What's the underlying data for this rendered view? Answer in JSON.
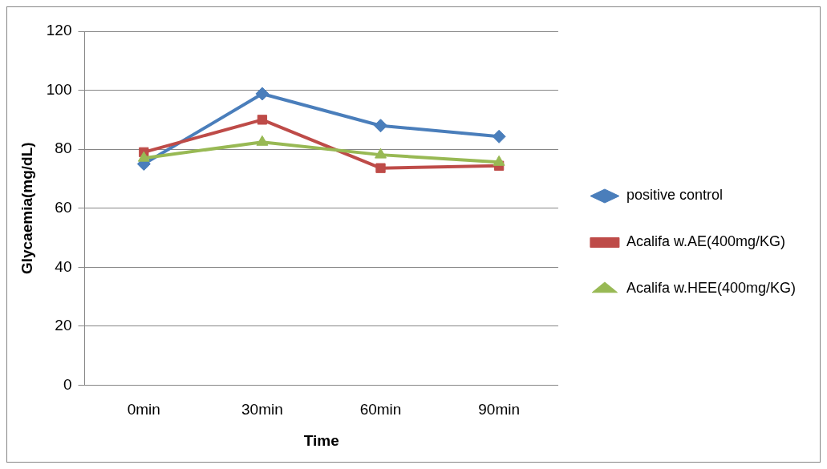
{
  "chart_data": {
    "type": "line",
    "xlabel": "Time",
    "ylabel": "Glycaemia(mg/dL)",
    "categories": [
      "0min",
      "30min",
      "60min",
      "90min"
    ],
    "series": [
      {
        "name": "positive control",
        "color": "#4a7ebb",
        "marker": "diamond",
        "values": [
          75,
          98.8,
          88,
          84.3
        ]
      },
      {
        "name": "Acalifa w.AE(400mg/KG)",
        "color": "#be4b48",
        "marker": "square",
        "values": [
          79,
          90,
          73.6,
          74.4
        ]
      },
      {
        "name": "Acalifa w.HEE(400mg/KG)",
        "color": "#98b954",
        "marker": "triangle",
        "values": [
          77,
          82.4,
          78.1,
          75.6
        ]
      }
    ],
    "ylim": [
      0,
      120
    ],
    "yticks": [
      0,
      20,
      40,
      60,
      80,
      100,
      120
    ],
    "grid": "y",
    "legend": "right",
    "line_style": "solid"
  }
}
